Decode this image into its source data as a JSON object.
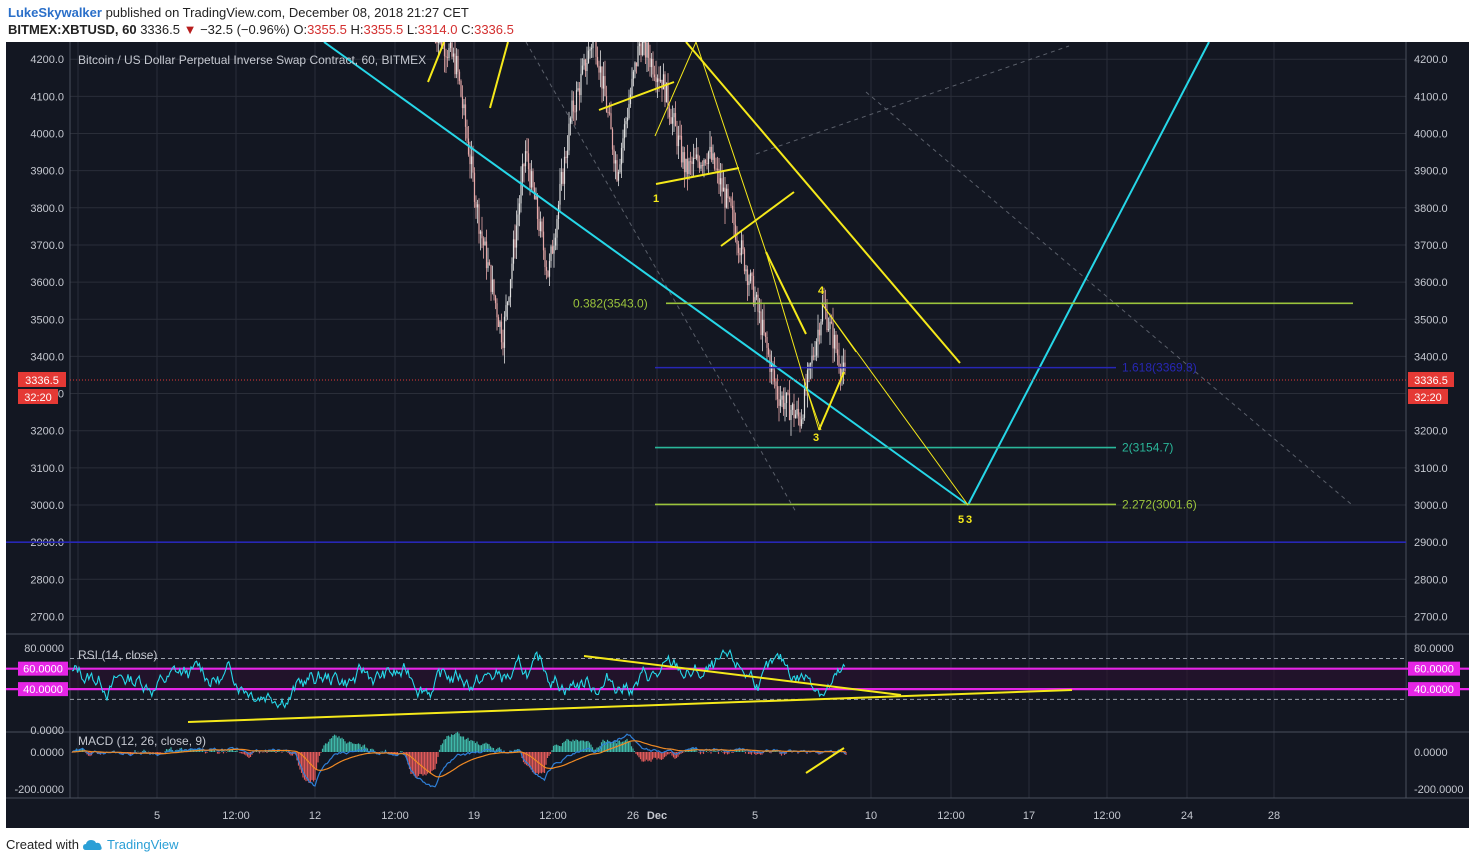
{
  "header": {
    "author": "LukeSkywalker",
    "published_text": "published on TradingView.com, December 08, 2018 21:27 CET",
    "symbol": "BITMEX:XBTUSD, 60",
    "price": "3336.5",
    "change": "−32.5 (−0.96%)",
    "o_label": "O:",
    "o_value": "3355.5",
    "h_label": "H:",
    "h_value": "3355.5",
    "l_label": "L:",
    "l_value": "3314.0",
    "c_label": "C:",
    "c_value": "3336.5"
  },
  "footer": {
    "created_with": "Created with",
    "brand": "TradingView"
  },
  "colors": {
    "background": "#131722",
    "grid": "#2a2e39",
    "axis_text": "#c5c8d0",
    "candle_up": "#e0e0e0",
    "candle_down": "#e5a8a8",
    "cyan": "#26d7e8",
    "yellow": "#f5e91a",
    "fib_green": "#9bc43c",
    "fib_blue": "#2727b5",
    "fib_teal": "#2ab79a",
    "magenta": "#e625e6",
    "price_red": "#e53935"
  },
  "chart_data": [
    {
      "type": "candlestick",
      "title": "Bitcoin / US Dollar Perpetual Inverse Swap Contract, 60, BITMEX",
      "ylim": [
        2620,
        4250
      ],
      "y_ticks": [
        "4200.0",
        "4100.0",
        "4000.0",
        "3900.0",
        "3800.0",
        "3700.0",
        "3600.0",
        "3500.0",
        "3400.0",
        "3300.0",
        "3200.0",
        "3100.0",
        "3000.0",
        "2900.0",
        "2800.0",
        "2700.0"
      ],
      "x_ticks": [
        "5",
        "12:00",
        "12",
        "12:00",
        "19",
        "12:00",
        "26",
        "Dec",
        "5",
        "10",
        "12:00",
        "17",
        "12:00",
        "24",
        "28"
      ],
      "last_price": {
        "value": 3336.5,
        "label": "3336.5",
        "countdown": "32:20"
      },
      "fib_levels": [
        {
          "label": "0.382(3543.0)",
          "value": 3543.0
        },
        {
          "label": "1.618(3369.8)",
          "value": 3369.8
        },
        {
          "label": "2(3154.7)",
          "value": 3154.7
        },
        {
          "label": "2.272(3001.6)",
          "value": 3001.6
        }
      ],
      "horizontal_line": {
        "value": 2900
      },
      "wave_labels": [
        "1",
        "4",
        "3",
        "5",
        "3"
      ],
      "price_path_key": [
        [
          "Nov 23",
          4290
        ],
        [
          "Nov 24",
          4180
        ],
        [
          "Nov 25",
          3750
        ],
        [
          "Nov 25",
          3450
        ],
        [
          "Nov 26",
          3950
        ],
        [
          "Nov 27",
          3620
        ],
        [
          "Nov 28",
          4050
        ],
        [
          "Nov 29",
          4270
        ],
        [
          "Nov 30",
          3900
        ],
        [
          "Dec 1",
          4250
        ],
        [
          "Dec 2",
          4140
        ],
        [
          "Dec 3",
          3900
        ],
        [
          "Dec 4",
          3950
        ],
        [
          "Dec 5",
          3780
        ],
        [
          "Dec 6",
          3560
        ],
        [
          "Dec 7",
          3300
        ],
        [
          "Dec 7",
          3230
        ],
        [
          "Dec 7",
          3540
        ],
        [
          "Dec 8",
          3330
        ]
      ]
    },
    {
      "type": "line",
      "title": "RSI (14, close)",
      "ylim": [
        0,
        90
      ],
      "y_ticks": [
        "80.0000",
        "0.0000"
      ],
      "band_labels": [
        "60.0000",
        "40.0000"
      ]
    },
    {
      "type": "line",
      "title": "MACD (12, 26, close, 9)",
      "y_ticks": [
        "0.0000",
        "-200.0000"
      ]
    }
  ]
}
